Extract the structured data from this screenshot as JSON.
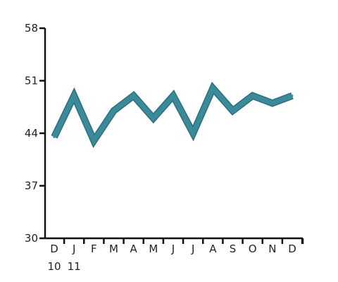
{
  "chart_data": {
    "type": "line",
    "x": [
      "D",
      "J",
      "F",
      "M",
      "A",
      "M",
      "J",
      "J",
      "A",
      "S",
      "O",
      "N",
      "D"
    ],
    "x_year_labels": [
      {
        "index": 0,
        "text": "10"
      },
      {
        "index": 1,
        "text": "11"
      }
    ],
    "series": [
      {
        "values": [
          43.5,
          49,
          43,
          47,
          49,
          46,
          49,
          44,
          50,
          47,
          49,
          48,
          49
        ]
      }
    ],
    "yticks": [
      "30",
      "37",
      "44",
      "51",
      "58"
    ],
    "ylim": [
      30,
      58
    ],
    "grid": false,
    "line_color": "#3a8a9a",
    "line_edge_color": "#2f6f7e"
  }
}
